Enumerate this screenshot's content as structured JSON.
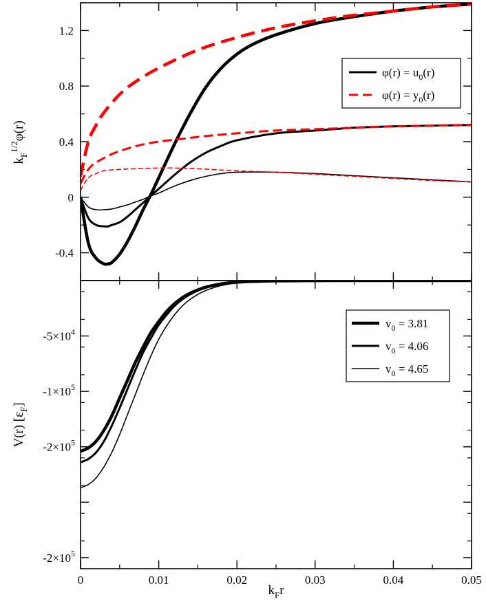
{
  "chart_data": [
    {
      "type": "line",
      "panel": "top",
      "ylabel": "k_F^{1/2} φ(r)",
      "xlim": [
        0,
        0.05
      ],
      "ylim": [
        -0.6,
        1.4
      ],
      "xticks": [
        0,
        0.01,
        0.02,
        0.03,
        0.04,
        0.05
      ],
      "yticks": [
        -0.4,
        0,
        0.4,
        0.8,
        1.2
      ],
      "ytick_labels": [
        "-0.4",
        "0",
        "0.4",
        "0.8",
        "1.2"
      ],
      "legend": {
        "position": "top-right",
        "entries": [
          {
            "text_main": "φ(r) = u",
            "sub": "0",
            "text_tail": "(r)",
            "color": "#000000",
            "style": "solid"
          },
          {
            "text_main": "φ(r) = y",
            "sub": "0",
            "text_tail": "(r)",
            "color": "#ff0000",
            "style": "dashed"
          }
        ]
      },
      "series": [
        {
          "name": "u0, v0 = 3.81",
          "color": "#000000",
          "style": "solid",
          "weight": "thick",
          "x": [
            0,
            0.001,
            0.002,
            0.003,
            0.0035,
            0.004,
            0.005,
            0.006,
            0.007,
            0.008,
            0.009,
            0.01,
            0.012,
            0.014,
            0.016,
            0.018,
            0.02,
            0.022,
            0.025,
            0.03,
            0.035,
            0.04,
            0.045,
            0.05
          ],
          "y": [
            0,
            -0.33,
            -0.44,
            -0.48,
            -0.48,
            -0.47,
            -0.41,
            -0.32,
            -0.21,
            -0.09,
            0.02,
            0.14,
            0.38,
            0.6,
            0.79,
            0.93,
            1.03,
            1.1,
            1.17,
            1.25,
            1.3,
            1.34,
            1.37,
            1.39
          ]
        },
        {
          "name": "u0, v0 = 4.06",
          "color": "#000000",
          "style": "solid",
          "weight": "medium",
          "x": [
            0,
            0.001,
            0.002,
            0.003,
            0.0035,
            0.004,
            0.005,
            0.006,
            0.007,
            0.008,
            0.009,
            0.01,
            0.012,
            0.014,
            0.016,
            0.018,
            0.02,
            0.025,
            0.03,
            0.035,
            0.04,
            0.045,
            0.05
          ],
          "y": [
            0,
            -0.15,
            -0.2,
            -0.21,
            -0.21,
            -0.2,
            -0.18,
            -0.14,
            -0.09,
            -0.04,
            0.01,
            0.06,
            0.16,
            0.25,
            0.32,
            0.37,
            0.41,
            0.46,
            0.48,
            0.5,
            0.51,
            0.515,
            0.52
          ]
        },
        {
          "name": "u0, v0 = 4.65",
          "color": "#000000",
          "style": "solid",
          "weight": "thin",
          "x": [
            0,
            0.001,
            0.002,
            0.003,
            0.004,
            0.005,
            0.006,
            0.007,
            0.008,
            0.009,
            0.01,
            0.012,
            0.014,
            0.016,
            0.018,
            0.02,
            0.025,
            0.03,
            0.035,
            0.04,
            0.045,
            0.05
          ],
          "y": [
            0,
            -0.07,
            -0.09,
            -0.09,
            -0.085,
            -0.07,
            -0.055,
            -0.035,
            -0.015,
            0.01,
            0.03,
            0.08,
            0.12,
            0.15,
            0.17,
            0.18,
            0.18,
            0.17,
            0.155,
            0.14,
            0.125,
            0.11
          ]
        },
        {
          "name": "y0, v0 = 3.81",
          "color": "#ff0000",
          "style": "dashed",
          "weight": "thick",
          "x": [
            0,
            0.001,
            0.002,
            0.003,
            0.005,
            0.007,
            0.01,
            0.015,
            0.02,
            0.025,
            0.03,
            0.035,
            0.04,
            0.045,
            0.05
          ],
          "y": [
            0.15,
            0.4,
            0.52,
            0.61,
            0.74,
            0.83,
            0.93,
            1.06,
            1.15,
            1.22,
            1.27,
            1.31,
            1.34,
            1.37,
            1.39
          ]
        },
        {
          "name": "y0, v0 = 4.06",
          "color": "#ff0000",
          "style": "dashed",
          "weight": "medium",
          "x": [
            0,
            0.001,
            0.002,
            0.004,
            0.006,
            0.008,
            0.01,
            0.013,
            0.016,
            0.02,
            0.025,
            0.03,
            0.035,
            0.04,
            0.045,
            0.05
          ],
          "y": [
            0.1,
            0.2,
            0.25,
            0.31,
            0.35,
            0.38,
            0.4,
            0.42,
            0.44,
            0.46,
            0.48,
            0.49,
            0.5,
            0.51,
            0.515,
            0.52
          ]
        },
        {
          "name": "y0, v0 = 4.65",
          "color": "#ff0000",
          "style": "dashed",
          "weight": "thin",
          "x": [
            0,
            0.001,
            0.002,
            0.003,
            0.005,
            0.007,
            0.01,
            0.012,
            0.015,
            0.02,
            0.025,
            0.03,
            0.035,
            0.04,
            0.045,
            0.05
          ],
          "y": [
            0.05,
            0.14,
            0.17,
            0.19,
            0.2,
            0.205,
            0.21,
            0.21,
            0.205,
            0.19,
            0.18,
            0.165,
            0.15,
            0.135,
            0.12,
            0.11
          ]
        }
      ]
    },
    {
      "type": "line",
      "panel": "bottom",
      "xlabel": "k_F r",
      "ylabel": "V(r) [ε_F]",
      "xlim": [
        0,
        0.05
      ],
      "ylim": [
        -2.6,
        0
      ],
      "xticks": [
        0,
        0.01,
        0.02,
        0.03,
        0.04,
        0.05
      ],
      "xtick_labels": [
        "0",
        "0.01",
        "0.02",
        "0.03",
        "0.04",
        "0.05"
      ],
      "yticks": [
        -0.5,
        -1.0,
        -1.5,
        -2.0,
        -2.5
      ],
      "ytick_labels": [
        {
          "pre": "-5×10",
          "exp": "4"
        },
        {
          "pre": "-1×10",
          "exp": "5"
        },
        {
          "pre": "-2×10",
          "exp": "5"
        },
        {
          "pre": "-2×10",
          "exp": "5"
        }
      ],
      "ytick_label_values": [
        -0.5,
        -1.0,
        -1.5,
        -2.5
      ],
      "legend": {
        "position": "top-right",
        "entries": [
          {
            "text_main": "v",
            "sub": "0",
            "text_tail": " = 3.81",
            "weight": "thick"
          },
          {
            "text_main": "v",
            "sub": "0",
            "text_tail": " = 4.06",
            "weight": "medium"
          },
          {
            "text_main": "v",
            "sub": "0",
            "text_tail": " = 4.65",
            "weight": "thin"
          }
        ]
      },
      "series": [
        {
          "name": "v0 = 3.81",
          "weight": "thick",
          "x": [
            0,
            0.001,
            0.002,
            0.003,
            0.004,
            0.005,
            0.006,
            0.007,
            0.008,
            0.009,
            0.01,
            0.011,
            0.012,
            0.013,
            0.014,
            0.015,
            0.016,
            0.018,
            0.02,
            0.022,
            0.025,
            0.03,
            0.035,
            0.04,
            0.05
          ],
          "y": [
            -1.54,
            -1.51,
            -1.45,
            -1.35,
            -1.22,
            -1.06,
            -0.9,
            -0.74,
            -0.6,
            -0.47,
            -0.37,
            -0.28,
            -0.21,
            -0.155,
            -0.115,
            -0.085,
            -0.06,
            -0.03,
            -0.015,
            -0.008,
            -0.003,
            -0.001,
            0,
            0,
            0
          ]
        },
        {
          "name": "v0 = 4.06",
          "weight": "medium",
          "x": [
            0,
            0.001,
            0.002,
            0.003,
            0.004,
            0.005,
            0.006,
            0.007,
            0.008,
            0.009,
            0.01,
            0.011,
            0.012,
            0.013,
            0.014,
            0.015,
            0.016,
            0.018,
            0.02,
            0.022,
            0.025,
            0.03,
            0.035,
            0.04,
            0.05
          ],
          "y": [
            -1.64,
            -1.61,
            -1.55,
            -1.45,
            -1.31,
            -1.15,
            -0.98,
            -0.81,
            -0.65,
            -0.52,
            -0.4,
            -0.31,
            -0.23,
            -0.17,
            -0.125,
            -0.09,
            -0.065,
            -0.033,
            -0.016,
            -0.008,
            -0.003,
            -0.001,
            0,
            0,
            0
          ]
        },
        {
          "name": "v0 = 4.65",
          "weight": "thin",
          "x": [
            0,
            0.001,
            0.002,
            0.003,
            0.004,
            0.005,
            0.006,
            0.007,
            0.008,
            0.009,
            0.01,
            0.011,
            0.012,
            0.013,
            0.014,
            0.015,
            0.016,
            0.018,
            0.02,
            0.022,
            0.025,
            0.03,
            0.035,
            0.04,
            0.05
          ],
          "y": [
            -1.87,
            -1.84,
            -1.78,
            -1.68,
            -1.55,
            -1.39,
            -1.21,
            -1.03,
            -0.85,
            -0.68,
            -0.53,
            -0.41,
            -0.31,
            -0.23,
            -0.17,
            -0.125,
            -0.09,
            -0.045,
            -0.022,
            -0.011,
            -0.004,
            -0.001,
            0,
            0,
            0
          ]
        }
      ]
    }
  ]
}
